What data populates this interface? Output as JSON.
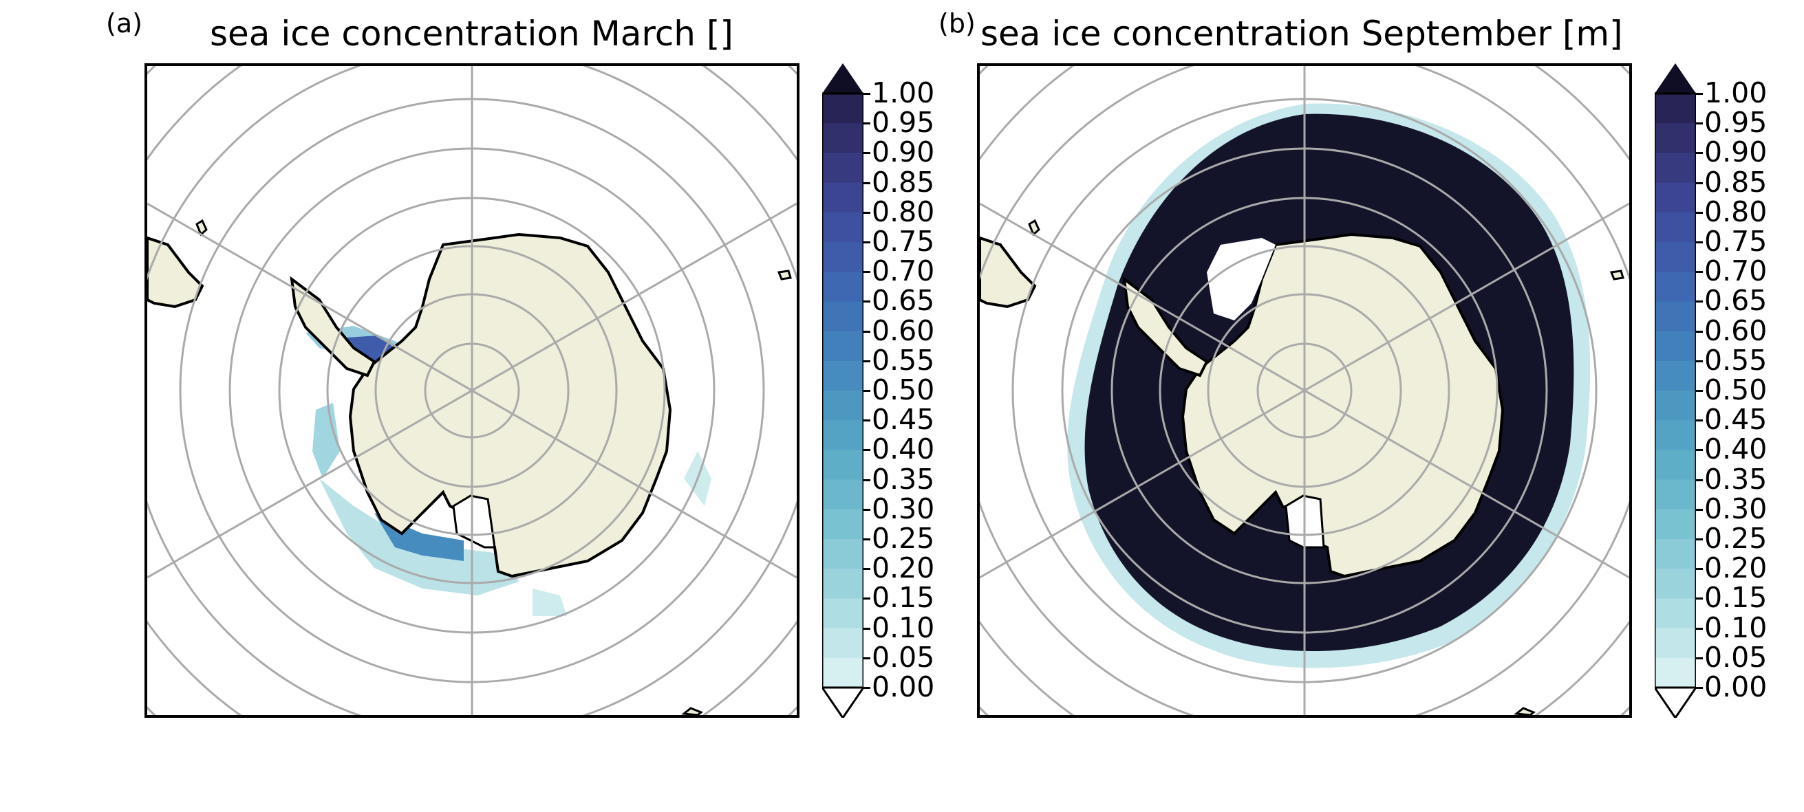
{
  "figure": {
    "panels": [
      {
        "label": "(a)",
        "title": "sea ice concentration March []",
        "month": "March",
        "ice_edge": "narrow fragmented band confined to the coast, mostly in the Weddell Sea and along West Antarctica",
        "typical_concentration": [
          0.05,
          0.35
        ]
      },
      {
        "label": "(b)",
        "title": "sea ice concentration September [m]",
        "month": "September",
        "ice_edge": "broad ring around Antarctica reaching the 60°S parallel",
        "typical_concentration": [
          0.95,
          1.0
        ]
      }
    ],
    "colorbar": {
      "levels": [
        "1.00",
        "0.95",
        "0.90",
        "0.85",
        "0.80",
        "0.75",
        "0.70",
        "0.65",
        "0.60",
        "0.55",
        "0.50",
        "0.45",
        "0.40",
        "0.35",
        "0.30",
        "0.25",
        "0.20",
        "0.15",
        "0.10",
        "0.05",
        "0.00"
      ],
      "extend": "both",
      "colormap": "ice",
      "colors_low_to_high": [
        "#d6eff1",
        "#c2e6ea",
        "#aedde3",
        "#9bd3dd",
        "#8acbd7",
        "#79c2d2",
        "#6bb8cd",
        "#5eaec8",
        "#54a3c4",
        "#4c98c1",
        "#468cbe",
        "#4280bb",
        "#3f74b7",
        "#3e68b1",
        "#3e5caa",
        "#3e50a0",
        "#3c4592",
        "#383a80",
        "#32306c",
        "#282556",
        "#1b1a3a"
      ],
      "over_color": "#0f0e25",
      "under_color": "#ffffff"
    },
    "map": {
      "projection": "South Polar Stereographic",
      "graticule_color": "#aaaaaa",
      "land_color": "#efefdb",
      "coastline_color": "#000000"
    }
  }
}
